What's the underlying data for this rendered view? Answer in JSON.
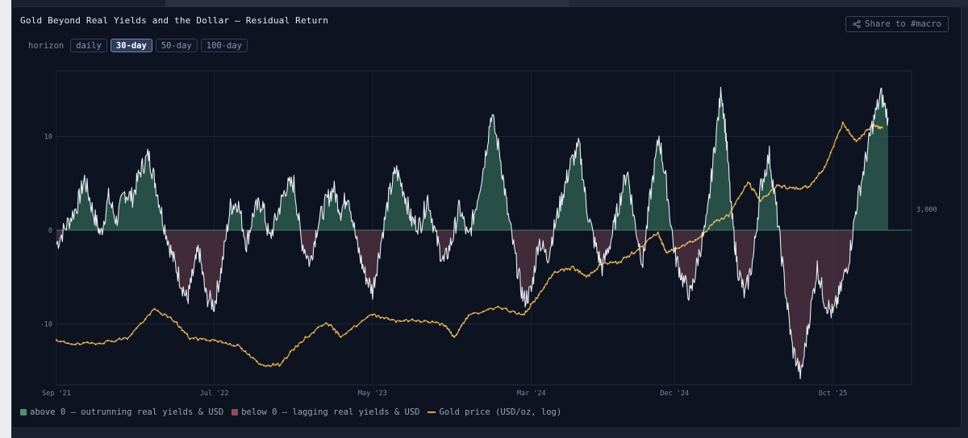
{
  "header": {
    "title": "Gold Beyond Real Yields and the Dollar — Residual Return",
    "share_label": "Share to #macro"
  },
  "controls": {
    "label": "horizon",
    "options": [
      "daily",
      "30-day",
      "50-day",
      "100-day"
    ],
    "selected": "30-day"
  },
  "colors": {
    "panel_bg": "#0d1321",
    "positive_fill": "#2d5a4e",
    "negative_fill": "#4b2f3d",
    "residual_line": "#e8ecf3",
    "gold_line": "#d9a441",
    "zero_line": "#4a7b6a"
  },
  "legend": [
    {
      "label": "above 0 — outrunning real yields & USD",
      "color": "#4f8f73",
      "kind": "box"
    },
    {
      "label": "below 0 — lagging real yields & USD",
      "color": "#8f4f5a",
      "kind": "box"
    },
    {
      "label": "Gold price (USD/oz, log)",
      "color": "#d9a441",
      "kind": "line"
    }
  ],
  "chart_data": {
    "type": "line",
    "x_ticks": [
      "Sep '21",
      "Jul '22",
      "May '23",
      "Mar '24",
      "Dec '24",
      "Oct '25"
    ],
    "x_tick_dates": [
      "2021-09-01",
      "2022-07-01",
      "2023-05-01",
      "2024-03-01",
      "2024-12-01",
      "2025-10-01"
    ],
    "x_range": [
      "2021-09-01",
      "2026-03-01"
    ],
    "y_left": {
      "ticks": [
        10,
        0,
        -10
      ],
      "range": [
        -16.5,
        17
      ]
    },
    "y_right": {
      "ticks": [
        3000
      ],
      "tick_labels": [
        "3,000"
      ],
      "scale": "log"
    },
    "series": [
      {
        "axis": "left",
        "points": [
          [
            "2021-09-01",
            -1.5
          ],
          [
            "2021-09-20",
            0.5
          ],
          [
            "2021-10-10",
            2.5
          ],
          [
            "2021-10-25",
            5.5
          ],
          [
            "2021-11-10",
            2.0
          ],
          [
            "2021-11-25",
            -0.5
          ],
          [
            "2021-12-10",
            3.5
          ],
          [
            "2021-12-25",
            1.0
          ],
          [
            "2022-01-10",
            4.0
          ],
          [
            "2022-01-25",
            3.5
          ],
          [
            "2022-02-10",
            6.5
          ],
          [
            "2022-02-25",
            8.0
          ],
          [
            "2022-03-10",
            5.0
          ],
          [
            "2022-03-25",
            1.0
          ],
          [
            "2022-04-10",
            -2.5
          ],
          [
            "2022-04-25",
            -5.0
          ],
          [
            "2022-05-10",
            -7.5
          ],
          [
            "2022-05-20",
            -5.0
          ],
          [
            "2022-06-01",
            -2.0
          ],
          [
            "2022-06-15",
            -7.0
          ],
          [
            "2022-07-01",
            -8.0
          ],
          [
            "2022-07-15",
            -4.0
          ],
          [
            "2022-08-01",
            2.5
          ],
          [
            "2022-08-15",
            3.0
          ],
          [
            "2022-09-01",
            -1.5
          ],
          [
            "2022-09-15",
            2.0
          ],
          [
            "2022-10-01",
            3.0
          ],
          [
            "2022-10-15",
            -1.0
          ],
          [
            "2022-11-01",
            2.0
          ],
          [
            "2022-11-15",
            4.5
          ],
          [
            "2022-12-01",
            5.0
          ],
          [
            "2022-12-15",
            -1.0
          ],
          [
            "2023-01-01",
            -3.5
          ],
          [
            "2023-01-15",
            0.5
          ],
          [
            "2023-02-01",
            3.0
          ],
          [
            "2023-02-15",
            4.5
          ],
          [
            "2023-03-01",
            2.0
          ],
          [
            "2023-03-15",
            4.0
          ],
          [
            "2023-04-01",
            -1.5
          ],
          [
            "2023-04-15",
            -4.5
          ],
          [
            "2023-05-01",
            -6.5
          ],
          [
            "2023-05-15",
            -2.0
          ],
          [
            "2023-06-01",
            3.5
          ],
          [
            "2023-06-15",
            6.5
          ],
          [
            "2023-07-01",
            4.0
          ],
          [
            "2023-07-15",
            1.0
          ],
          [
            "2023-08-01",
            0.5
          ],
          [
            "2023-08-15",
            3.5
          ],
          [
            "2023-09-01",
            -1.0
          ],
          [
            "2023-09-15",
            -3.5
          ],
          [
            "2023-10-01",
            -1.0
          ],
          [
            "2023-10-15",
            2.5
          ],
          [
            "2023-11-01",
            -1.0
          ],
          [
            "2023-11-15",
            2.5
          ],
          [
            "2023-12-01",
            7.0
          ],
          [
            "2023-12-15",
            12.5
          ],
          [
            "2024-01-01",
            8.0
          ],
          [
            "2024-01-15",
            2.0
          ],
          [
            "2024-02-01",
            -3.5
          ],
          [
            "2024-02-15",
            -7.5
          ],
          [
            "2024-03-01",
            -6.5
          ],
          [
            "2024-03-15",
            -1.0
          ],
          [
            "2024-04-01",
            -3.0
          ],
          [
            "2024-04-15",
            0.5
          ],
          [
            "2024-05-01",
            4.0
          ],
          [
            "2024-05-15",
            7.0
          ],
          [
            "2024-06-01",
            9.0
          ],
          [
            "2024-06-15",
            2.5
          ],
          [
            "2024-07-01",
            -1.5
          ],
          [
            "2024-07-15",
            -4.0
          ],
          [
            "2024-08-01",
            -1.0
          ],
          [
            "2024-08-15",
            2.5
          ],
          [
            "2024-09-01",
            6.5
          ],
          [
            "2024-09-15",
            1.0
          ],
          [
            "2024-10-01",
            -3.5
          ],
          [
            "2024-10-15",
            3.5
          ],
          [
            "2024-11-01",
            10.0
          ],
          [
            "2024-11-15",
            5.0
          ],
          [
            "2024-12-01",
            -2.5
          ],
          [
            "2024-12-15",
            -5.0
          ],
          [
            "2025-01-01",
            -7.0
          ],
          [
            "2025-01-15",
            -3.0
          ],
          [
            "2025-02-01",
            1.0
          ],
          [
            "2025-02-15",
            8.5
          ],
          [
            "2025-03-01",
            15.0
          ],
          [
            "2025-03-10",
            10.0
          ],
          [
            "2025-03-20",
            2.0
          ],
          [
            "2025-04-01",
            -4.0
          ],
          [
            "2025-04-15",
            -7.0
          ],
          [
            "2025-05-01",
            -3.0
          ],
          [
            "2025-05-15",
            4.5
          ],
          [
            "2025-06-01",
            8.0
          ],
          [
            "2025-06-15",
            2.0
          ],
          [
            "2025-07-01",
            -6.0
          ],
          [
            "2025-07-15",
            -12.5
          ],
          [
            "2025-08-01",
            -15.5
          ],
          [
            "2025-08-15",
            -10.0
          ],
          [
            "2025-09-01",
            -4.0
          ],
          [
            "2025-09-15",
            -7.5
          ],
          [
            "2025-10-01",
            -9.0
          ],
          [
            "2025-10-15",
            -6.5
          ],
          [
            "2025-11-01",
            -3.0
          ],
          [
            "2025-11-15",
            2.5
          ],
          [
            "2025-12-01",
            7.0
          ],
          [
            "2025-12-15",
            11.0
          ],
          [
            "2026-01-01",
            14.5
          ],
          [
            "2026-01-15",
            12.0
          ]
        ]
      },
      {
        "name": "Gold price (USD/oz, log)",
        "axis": "right",
        "points": [
          [
            "2021-09-01",
            1790
          ],
          [
            "2021-10-15",
            1770
          ],
          [
            "2021-12-01",
            1785
          ],
          [
            "2022-01-15",
            1815
          ],
          [
            "2022-03-08",
            2040
          ],
          [
            "2022-04-15",
            1950
          ],
          [
            "2022-05-15",
            1815
          ],
          [
            "2022-07-01",
            1800
          ],
          [
            "2022-08-15",
            1760
          ],
          [
            "2022-09-28",
            1625
          ],
          [
            "2022-11-03",
            1630
          ],
          [
            "2022-12-15",
            1790
          ],
          [
            "2023-02-01",
            1940
          ],
          [
            "2023-03-01",
            1830
          ],
          [
            "2023-05-01",
            2000
          ],
          [
            "2023-06-15",
            1950
          ],
          [
            "2023-08-01",
            1950
          ],
          [
            "2023-09-15",
            1920
          ],
          [
            "2023-10-05",
            1820
          ],
          [
            "2023-11-01",
            1990
          ],
          [
            "2023-12-28",
            2065
          ],
          [
            "2024-02-14",
            1990
          ],
          [
            "2024-03-15",
            2160
          ],
          [
            "2024-04-15",
            2380
          ],
          [
            "2024-05-20",
            2420
          ],
          [
            "2024-06-15",
            2330
          ],
          [
            "2024-07-15",
            2460
          ],
          [
            "2024-08-15",
            2470
          ],
          [
            "2024-09-15",
            2580
          ],
          [
            "2024-10-30",
            2790
          ],
          [
            "2024-11-15",
            2570
          ],
          [
            "2024-12-15",
            2650
          ],
          [
            "2025-01-15",
            2720
          ],
          [
            "2025-02-15",
            2910
          ],
          [
            "2025-03-15",
            3000
          ],
          [
            "2025-04-21",
            3430
          ],
          [
            "2025-05-15",
            3180
          ],
          [
            "2025-06-15",
            3380
          ],
          [
            "2025-07-15",
            3340
          ],
          [
            "2025-08-15",
            3360
          ],
          [
            "2025-09-15",
            3640
          ],
          [
            "2025-10-20",
            4360
          ],
          [
            "2025-11-15",
            4050
          ],
          [
            "2025-12-15",
            4320
          ],
          [
            "2026-01-05",
            4270
          ]
        ]
      }
    ],
    "grid": true,
    "legend_position": "bottom-left"
  }
}
